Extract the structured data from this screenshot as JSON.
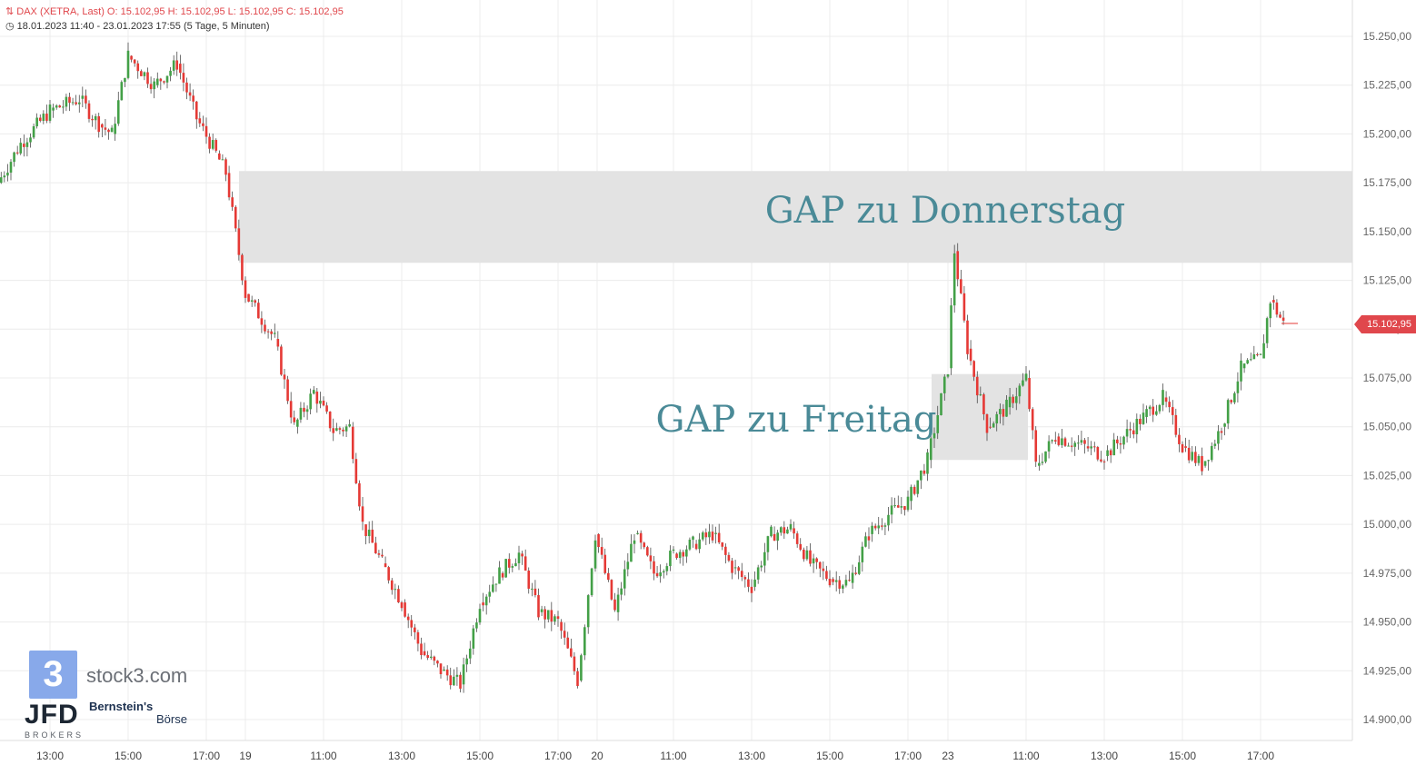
{
  "header": {
    "line1": "DAX (XETRA, Last)  O: 15.102,95  H: 15.102,95  L: 15.102,95  C: 15.102,95",
    "line2": "18.01.2023 11:40 - 23.01.2023 17:55  (5 Tage, 5 Minuten)"
  },
  "last_price_label": "15.102,95",
  "annotations": {
    "gap_donnerstag": "GAP zu Donnerstag",
    "gap_freitag": "GAP zu Freitag"
  },
  "watermarks": {
    "stock3_digit": "3",
    "stock3_text": "stock3.com",
    "jfd": "JFD",
    "jfd_sub": "BROKERS",
    "bernstein": "Bernstein's",
    "boerse": "Börse"
  },
  "colors": {
    "up": "#43a047",
    "down": "#e53935",
    "gap_zone": "#e3e3e3",
    "annotation_text": "#4a8a97",
    "price_tag": "#e0474c"
  },
  "chart_data": {
    "type": "candlestick",
    "instrument": "DAX (XETRA, Last)",
    "interval": "5 Minuten",
    "ylim": [
      14890,
      15260
    ],
    "y_ticks": [
      "15.250,00",
      "15.225,00",
      "15.200,00",
      "15.175,00",
      "15.150,00",
      "15.125,00",
      "15.100,00",
      "15.075,00",
      "15.050,00",
      "15.025,00",
      "15.000,00",
      "14.975,00",
      "14.950,00",
      "14.925,00",
      "14.900,00"
    ],
    "y_tick_values": [
      15250,
      15225,
      15200,
      15175,
      15150,
      15125,
      15100,
      15075,
      15050,
      15025,
      15000,
      14975,
      14950,
      14925,
      14900
    ],
    "x_ticks": [
      "13:00",
      "15:00",
      "17:00",
      "19",
      "11:00",
      "13:00",
      "15:00",
      "17:00",
      "20",
      "11:00",
      "13:00",
      "15:00",
      "17:00",
      "23",
      "11:00",
      "13:00",
      "15:00",
      "17:00"
    ],
    "price_path": [
      {
        "t": "18.01 11:40",
        "v": 15175
      },
      {
        "t": "18.01 12:15",
        "v": 15195
      },
      {
        "t": "18.01 13:00",
        "v": 15212
      },
      {
        "t": "18.01 13:45",
        "v": 15218
      },
      {
        "t": "18.01 14:15",
        "v": 15205
      },
      {
        "t": "18.01 14:35",
        "v": 15200
      },
      {
        "t": "18.01 15:00",
        "v": 15240
      },
      {
        "t": "18.01 15:40",
        "v": 15225
      },
      {
        "t": "18.01 16:15",
        "v": 15236
      },
      {
        "t": "18.01 16:45",
        "v": 15208
      },
      {
        "t": "18.01 17:15",
        "v": 15190
      },
      {
        "t": "18.01 17:30",
        "v": 15180
      },
      {
        "t": "19.01 09:00",
        "v": 15118
      },
      {
        "t": "19.01 09:45",
        "v": 15095
      },
      {
        "t": "19.01 10:15",
        "v": 15050
      },
      {
        "t": "19.01 10:45",
        "v": 15068
      },
      {
        "t": "19.01 11:15",
        "v": 15048
      },
      {
        "t": "19.01 11:40",
        "v": 15050
      },
      {
        "t": "19.01 12:00",
        "v": 15000
      },
      {
        "t": "19.01 12:30",
        "v": 14980
      },
      {
        "t": "19.01 13:00",
        "v": 14960
      },
      {
        "t": "19.01 13:30",
        "v": 14935
      },
      {
        "t": "19.01 14:00",
        "v": 14925
      },
      {
        "t": "19.01 14:30",
        "v": 14918
      },
      {
        "t": "19.01 15:00",
        "v": 14960
      },
      {
        "t": "19.01 15:30",
        "v": 14975
      },
      {
        "t": "19.01 16:00",
        "v": 14985
      },
      {
        "t": "19.01 16:30",
        "v": 14955
      },
      {
        "t": "19.01 17:00",
        "v": 14950
      },
      {
        "t": "19.01 17:30",
        "v": 14920
      },
      {
        "t": "20.01 09:00",
        "v": 14995
      },
      {
        "t": "20.01 09:30",
        "v": 14955
      },
      {
        "t": "20.01 10:00",
        "v": 14995
      },
      {
        "t": "20.01 10:30",
        "v": 14975
      },
      {
        "t": "20.01 11:00",
        "v": 14985
      },
      {
        "t": "20.01 11:30",
        "v": 14990
      },
      {
        "t": "20.01 12:00",
        "v": 14995
      },
      {
        "t": "20.01 12:30",
        "v": 14978
      },
      {
        "t": "20.01 13:00",
        "v": 14968
      },
      {
        "t": "20.01 13:30",
        "v": 14995
      },
      {
        "t": "20.01 14:00",
        "v": 14998
      },
      {
        "t": "20.01 14:30",
        "v": 14980
      },
      {
        "t": "20.01 15:00",
        "v": 14972
      },
      {
        "t": "20.01 15:30",
        "v": 14970
      },
      {
        "t": "20.01 16:00",
        "v": 14995
      },
      {
        "t": "20.01 16:30",
        "v": 15005
      },
      {
        "t": "20.01 17:00",
        "v": 15012
      },
      {
        "t": "20.01 17:30",
        "v": 15033
      },
      {
        "t": "23.01 09:00",
        "v": 15080
      },
      {
        "t": "23.01 09:10",
        "v": 15140
      },
      {
        "t": "23.01 09:30",
        "v": 15090
      },
      {
        "t": "23.01 10:00",
        "v": 15050
      },
      {
        "t": "23.01 10:30",
        "v": 15060
      },
      {
        "t": "23.01 11:00",
        "v": 15075
      },
      {
        "t": "23.01 11:15",
        "v": 15030
      },
      {
        "t": "23.01 11:45",
        "v": 15045
      },
      {
        "t": "23.01 12:30",
        "v": 15040
      },
      {
        "t": "23.01 13:00",
        "v": 15035
      },
      {
        "t": "23.01 13:30",
        "v": 15045
      },
      {
        "t": "23.01 14:00",
        "v": 15055
      },
      {
        "t": "23.01 14:30",
        "v": 15065
      },
      {
        "t": "23.01 15:00",
        "v": 15040
      },
      {
        "t": "23.01 15:30",
        "v": 15030
      },
      {
        "t": "23.01 16:00",
        "v": 15050
      },
      {
        "t": "23.01 16:30",
        "v": 15080
      },
      {
        "t": "23.01 17:00",
        "v": 15085
      },
      {
        "t": "23.01 17:15",
        "v": 15115
      },
      {
        "t": "23.01 17:35",
        "v": 15103
      }
    ],
    "last_close": 15102.95,
    "gap_zones": [
      {
        "label": "GAP zu Donnerstag",
        "from_time": "18.01 17:45",
        "to_time": "23.01 17:55",
        "low": 15134,
        "high": 15181
      },
      {
        "label": "GAP zu Freitag",
        "from_time": "20.01 17:30",
        "to_time": "23.01 11:00",
        "low": 15033,
        "high": 15077
      }
    ],
    "grid": true,
    "y_axis_position": "right",
    "title": "DAX (XETRA, Last)"
  }
}
